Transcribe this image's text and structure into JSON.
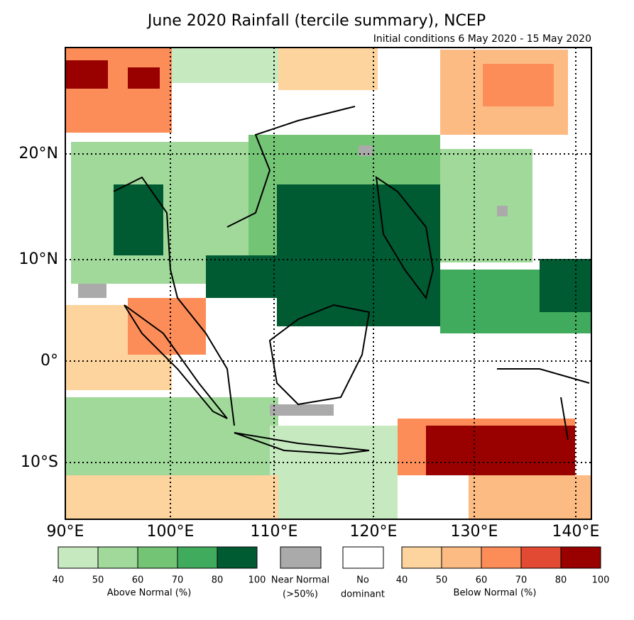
{
  "map": {
    "title": "June 2020 Rainfall (tercile summary), NCEP",
    "subtitle": "Initial conditions 6 May 2020 - 15 May 2020",
    "lon_labels": [
      "90°E",
      "100°E",
      "110°E",
      "120°E",
      "130°E",
      "140°E"
    ],
    "lat_labels": [
      "20°N",
      "10°N",
      "0°",
      "10°S"
    ],
    "legend": {
      "above": {
        "label": "Above Normal (%)",
        "ticks": [
          "40",
          "50",
          "60",
          "70",
          "80",
          "100"
        ],
        "colors": [
          "#c7e9c0",
          "#a1d99b",
          "#74c476",
          "#41ab5d",
          "#005a32"
        ]
      },
      "near": {
        "label": "Near Normal",
        "note": "(>50%)",
        "color": "#aaaaaa"
      },
      "none": {
        "label": "No",
        "note": "dominant",
        "color": "#ffffff"
      },
      "below": {
        "label": "Below Normal (%)",
        "ticks": [
          "40",
          "50",
          "60",
          "70",
          "80",
          "100"
        ],
        "colors": [
          "#fdd49e",
          "#fdbb84",
          "#fc8d59",
          "#e34a33",
          "#990000"
        ]
      }
    }
  }
}
